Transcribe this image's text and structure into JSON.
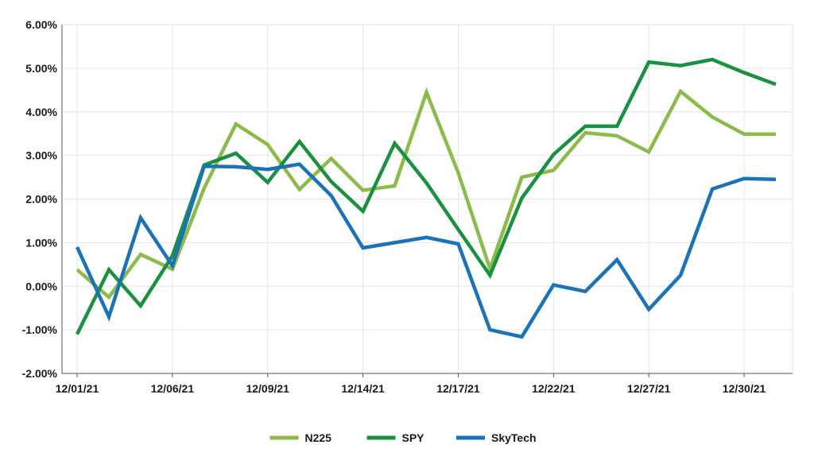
{
  "chart_data": {
    "type": "line",
    "title": "",
    "xlabel": "",
    "ylabel": "",
    "ylim": [
      -2,
      6
    ],
    "yticks": [
      -2,
      -1,
      0,
      1,
      2,
      3,
      4,
      5,
      6
    ],
    "ytick_labels": [
      "-2.00%",
      "-1.00%",
      "0.00%",
      "1.00%",
      "2.00%",
      "3.00%",
      "4.00%",
      "5.00%",
      "6.00%"
    ],
    "xtick_labels": [
      "12/01/21",
      "12/06/21",
      "12/09/21",
      "12/14/21",
      "12/17/21",
      "12/22/21",
      "12/27/21",
      "12/30/21"
    ],
    "xtick_positions": [
      0,
      3,
      6,
      9,
      12,
      15,
      18,
      21
    ],
    "legend_position": "bottom",
    "grid": true,
    "x_count": 23,
    "series": [
      {
        "name": "N225",
        "color": "#8dbb4a",
        "values": [
          0.38,
          -0.25,
          0.73,
          0.39,
          2.25,
          3.72,
          3.25,
          2.22,
          2.93,
          2.2,
          2.3,
          4.45,
          2.6,
          0.4,
          2.5,
          2.66,
          3.52,
          3.45,
          3.08,
          4.47,
          3.88,
          3.49,
          3.49
        ]
      },
      {
        "name": "SPY",
        "color": "#1a9140",
        "values": [
          -1.1,
          0.38,
          -0.45,
          0.7,
          2.78,
          3.05,
          2.38,
          3.32,
          2.4,
          1.72,
          3.28,
          2.37,
          1.3,
          0.25,
          2.02,
          3.02,
          3.67,
          3.67,
          5.14,
          5.06,
          5.2,
          4.9,
          4.63
        ]
      },
      {
        "name": "SkyTech",
        "color": "#1a72b8",
        "values": [
          0.9,
          -0.7,
          1.57,
          0.47,
          2.75,
          2.74,
          2.68,
          2.8,
          2.08,
          0.88,
          1.0,
          1.12,
          0.97,
          -1.0,
          -1.16,
          0.03,
          -0.12,
          0.61,
          -0.53,
          0.25,
          2.23,
          2.47,
          2.45
        ]
      }
    ]
  }
}
